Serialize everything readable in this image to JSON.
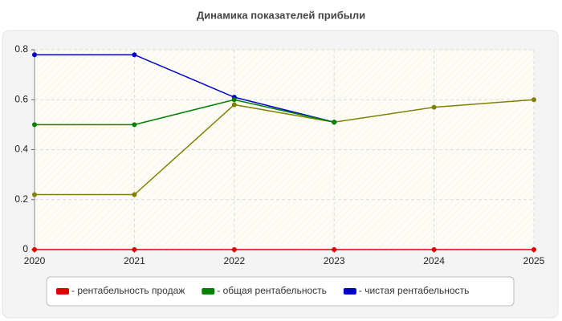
{
  "chart_data": {
    "type": "line",
    "title": "Динамика показателей прибыли",
    "x": [
      2020,
      2021,
      2022,
      2023,
      2024,
      2025
    ],
    "xlim": [
      2020,
      2025
    ],
    "xticks": [
      2020,
      2021,
      2022,
      2023,
      2024,
      2025
    ],
    "ylim": [
      0,
      0.8
    ],
    "yticks": [
      0,
      0.2,
      0.4,
      0.6,
      0.8
    ],
    "grid": true,
    "series": [
      {
        "name": "- рентабельность продаж",
        "color": "#e00000",
        "values": [
          0,
          0,
          0,
          0,
          0,
          0
        ]
      },
      {
        "name": "- общая рентабельность",
        "color": "#008000",
        "values": [
          0.5,
          0.5,
          0.6,
          0.51,
          null,
          null
        ]
      },
      {
        "name": "- чистая рентабельность",
        "color": "#0000cc",
        "values": [
          0.78,
          0.78,
          0.61,
          0.51,
          null,
          null
        ]
      },
      {
        "color": "#808000",
        "values": [
          0.22,
          0.22,
          0.58,
          0.51,
          0.57,
          0.6
        ]
      }
    ]
  }
}
